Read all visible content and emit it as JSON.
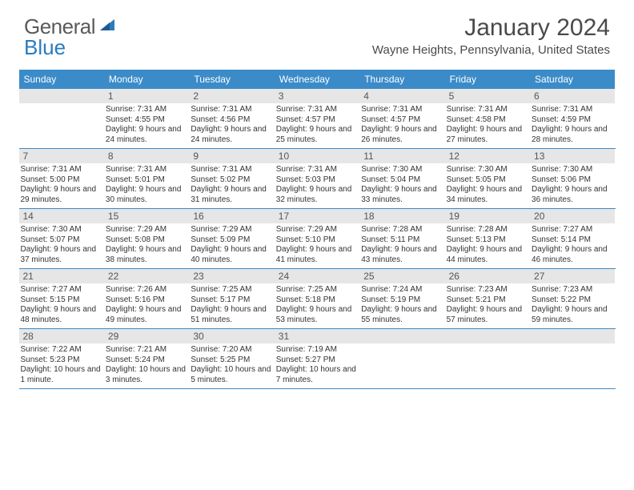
{
  "brand": {
    "part1": "General",
    "part2": "Blue"
  },
  "header": {
    "title": "January 2024",
    "location": "Wayne Heights, Pennsylvania, United States"
  },
  "colors": {
    "header_bar": "#3b8bc9",
    "daynum_bg": "#e6e6e6",
    "text": "#333333",
    "brand_gray": "#5a5a5a",
    "brand_blue": "#2b7bbf"
  },
  "day_headers": [
    "Sunday",
    "Monday",
    "Tuesday",
    "Wednesday",
    "Thursday",
    "Friday",
    "Saturday"
  ],
  "weeks": [
    [
      {
        "n": "",
        "sr": "",
        "ss": "",
        "dl": ""
      },
      {
        "n": "1",
        "sr": "7:31 AM",
        "ss": "4:55 PM",
        "dl": "9 hours and 24 minutes."
      },
      {
        "n": "2",
        "sr": "7:31 AM",
        "ss": "4:56 PM",
        "dl": "9 hours and 24 minutes."
      },
      {
        "n": "3",
        "sr": "7:31 AM",
        "ss": "4:57 PM",
        "dl": "9 hours and 25 minutes."
      },
      {
        "n": "4",
        "sr": "7:31 AM",
        "ss": "4:57 PM",
        "dl": "9 hours and 26 minutes."
      },
      {
        "n": "5",
        "sr": "7:31 AM",
        "ss": "4:58 PM",
        "dl": "9 hours and 27 minutes."
      },
      {
        "n": "6",
        "sr": "7:31 AM",
        "ss": "4:59 PM",
        "dl": "9 hours and 28 minutes."
      }
    ],
    [
      {
        "n": "7",
        "sr": "7:31 AM",
        "ss": "5:00 PM",
        "dl": "9 hours and 29 minutes."
      },
      {
        "n": "8",
        "sr": "7:31 AM",
        "ss": "5:01 PM",
        "dl": "9 hours and 30 minutes."
      },
      {
        "n": "9",
        "sr": "7:31 AM",
        "ss": "5:02 PM",
        "dl": "9 hours and 31 minutes."
      },
      {
        "n": "10",
        "sr": "7:31 AM",
        "ss": "5:03 PM",
        "dl": "9 hours and 32 minutes."
      },
      {
        "n": "11",
        "sr": "7:30 AM",
        "ss": "5:04 PM",
        "dl": "9 hours and 33 minutes."
      },
      {
        "n": "12",
        "sr": "7:30 AM",
        "ss": "5:05 PM",
        "dl": "9 hours and 34 minutes."
      },
      {
        "n": "13",
        "sr": "7:30 AM",
        "ss": "5:06 PM",
        "dl": "9 hours and 36 minutes."
      }
    ],
    [
      {
        "n": "14",
        "sr": "7:30 AM",
        "ss": "5:07 PM",
        "dl": "9 hours and 37 minutes."
      },
      {
        "n": "15",
        "sr": "7:29 AM",
        "ss": "5:08 PM",
        "dl": "9 hours and 38 minutes."
      },
      {
        "n": "16",
        "sr": "7:29 AM",
        "ss": "5:09 PM",
        "dl": "9 hours and 40 minutes."
      },
      {
        "n": "17",
        "sr": "7:29 AM",
        "ss": "5:10 PM",
        "dl": "9 hours and 41 minutes."
      },
      {
        "n": "18",
        "sr": "7:28 AM",
        "ss": "5:11 PM",
        "dl": "9 hours and 43 minutes."
      },
      {
        "n": "19",
        "sr": "7:28 AM",
        "ss": "5:13 PM",
        "dl": "9 hours and 44 minutes."
      },
      {
        "n": "20",
        "sr": "7:27 AM",
        "ss": "5:14 PM",
        "dl": "9 hours and 46 minutes."
      }
    ],
    [
      {
        "n": "21",
        "sr": "7:27 AM",
        "ss": "5:15 PM",
        "dl": "9 hours and 48 minutes."
      },
      {
        "n": "22",
        "sr": "7:26 AM",
        "ss": "5:16 PM",
        "dl": "9 hours and 49 minutes."
      },
      {
        "n": "23",
        "sr": "7:25 AM",
        "ss": "5:17 PM",
        "dl": "9 hours and 51 minutes."
      },
      {
        "n": "24",
        "sr": "7:25 AM",
        "ss": "5:18 PM",
        "dl": "9 hours and 53 minutes."
      },
      {
        "n": "25",
        "sr": "7:24 AM",
        "ss": "5:19 PM",
        "dl": "9 hours and 55 minutes."
      },
      {
        "n": "26",
        "sr": "7:23 AM",
        "ss": "5:21 PM",
        "dl": "9 hours and 57 minutes."
      },
      {
        "n": "27",
        "sr": "7:23 AM",
        "ss": "5:22 PM",
        "dl": "9 hours and 59 minutes."
      }
    ],
    [
      {
        "n": "28",
        "sr": "7:22 AM",
        "ss": "5:23 PM",
        "dl": "10 hours and 1 minute."
      },
      {
        "n": "29",
        "sr": "7:21 AM",
        "ss": "5:24 PM",
        "dl": "10 hours and 3 minutes."
      },
      {
        "n": "30",
        "sr": "7:20 AM",
        "ss": "5:25 PM",
        "dl": "10 hours and 5 minutes."
      },
      {
        "n": "31",
        "sr": "7:19 AM",
        "ss": "5:27 PM",
        "dl": "10 hours and 7 minutes."
      },
      {
        "n": "",
        "sr": "",
        "ss": "",
        "dl": ""
      },
      {
        "n": "",
        "sr": "",
        "ss": "",
        "dl": ""
      },
      {
        "n": "",
        "sr": "",
        "ss": "",
        "dl": ""
      }
    ]
  ],
  "labels": {
    "sunrise": "Sunrise:",
    "sunset": "Sunset:",
    "daylight": "Daylight:"
  }
}
